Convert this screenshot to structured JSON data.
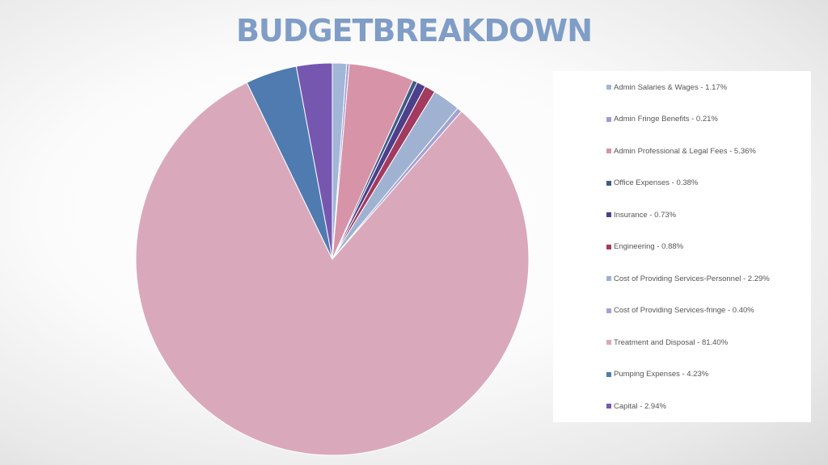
{
  "title": "BUDGETBREAKDOWN",
  "chart_data": {
    "type": "pie",
    "start_angle_deg": 0,
    "direction": "clockwise",
    "slices": [
      {
        "label": "Admin Salaries & Wages - 1.17%",
        "value": 1.17,
        "color": "#a2b6d7"
      },
      {
        "label": "Admin Fringe Benefits - 0.21%",
        "value": 0.21,
        "color": "#a09ad4"
      },
      {
        "label": "Admin Professional & Legal Fees - 5.36%",
        "value": 5.36,
        "color": "#d793a8"
      },
      {
        "label": "Office Expenses - 0.38%",
        "value": 0.38,
        "color": "#3e5d86"
      },
      {
        "label": "Insurance - 0.73%",
        "value": 0.73,
        "color": "#4d3f8b"
      },
      {
        "label": "Engineering - 0.88%",
        "value": 0.88,
        "color": "#a23b5d"
      },
      {
        "label": "Cost of Providing Services-Personnel - 2.29%",
        "value": 2.29,
        "color": "#9fb2d2"
      },
      {
        "label": "Cost of Providing Services-fringe - 0.40%",
        "value": 0.4,
        "color": "#a4a2cf"
      },
      {
        "label": "Treatment and Disposal - 81.40%",
        "value": 81.4,
        "color": "#d9a9bb"
      },
      {
        "label": "Pumping Expenses - 4.23%",
        "value": 4.23,
        "color": "#4f7bb0"
      },
      {
        "label": "Capital - 2.94%",
        "value": 2.94,
        "color": "#7657b0"
      }
    ],
    "legend_placement": "right"
  }
}
